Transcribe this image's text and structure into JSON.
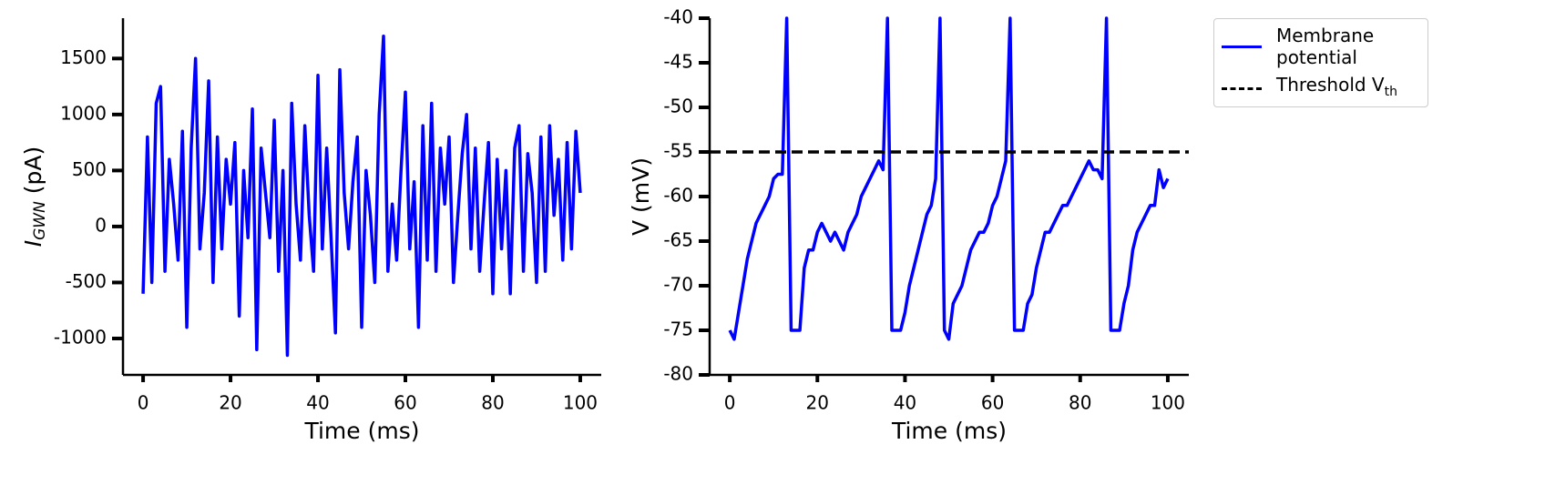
{
  "chart_data": [
    {
      "type": "line",
      "xlabel": "Time (ms)",
      "ylabel": [
        "I",
        "GWN",
        "(pA)"
      ],
      "xlim": [
        -4.6,
        104.8
      ],
      "xticks": [
        0,
        20,
        40,
        60,
        80,
        100
      ],
      "ylim": [
        -1325,
        1860
      ],
      "yticks": [
        -1000,
        -500,
        0,
        500,
        1000,
        1500
      ],
      "x": [
        0,
        1,
        2,
        3,
        4,
        5,
        6,
        7,
        8,
        9,
        10,
        11,
        12,
        13,
        14,
        15,
        16,
        17,
        18,
        19,
        20,
        21,
        22,
        23,
        24,
        25,
        26,
        27,
        28,
        29,
        30,
        31,
        32,
        33,
        34,
        35,
        36,
        37,
        38,
        39,
        40,
        41,
        42,
        43,
        44,
        45,
        46,
        47,
        48,
        49,
        50,
        51,
        52,
        53,
        54,
        55,
        56,
        57,
        58,
        59,
        60,
        61,
        62,
        63,
        64,
        65,
        66,
        67,
        68,
        69,
        70,
        71,
        72,
        73,
        74,
        75,
        76,
        77,
        78,
        79,
        80,
        81,
        82,
        83,
        84,
        85,
        86,
        87,
        88,
        89,
        90,
        91,
        92,
        93,
        94,
        95,
        96,
        97,
        98,
        99,
        100
      ],
      "series": [
        {
          "color": "#0000ff",
          "values": [
            -600,
            800,
            -500,
            1100,
            1250,
            -400,
            600,
            200,
            -300,
            850,
            -900,
            700,
            1500,
            -200,
            300,
            1300,
            -500,
            800,
            -200,
            600,
            200,
            750,
            -800,
            500,
            -100,
            1050,
            -1100,
            700,
            300,
            -100,
            950,
            -400,
            500,
            -1150,
            1100,
            200,
            -300,
            900,
            100,
            -400,
            1350,
            -200,
            700,
            -100,
            -950,
            1400,
            300,
            -200,
            400,
            800,
            -900,
            500,
            100,
            -500,
            1000,
            1700,
            -400,
            200,
            -300,
            500,
            1200,
            -200,
            400,
            -900,
            900,
            -300,
            1100,
            -400,
            700,
            200,
            800,
            -500,
            100,
            650,
            1000,
            -200,
            700,
            -400,
            200,
            750,
            -600,
            600,
            -200,
            500,
            -600,
            700,
            900,
            -400,
            650,
            300,
            -500,
            800,
            -400,
            900,
            100,
            600,
            -300,
            750,
            -200,
            850,
            300
          ]
        }
      ]
    },
    {
      "type": "line",
      "xlabel": "Time (ms)",
      "ylabel": "V (mV)",
      "legend": "outside upper right",
      "xlim": [
        -4.6,
        104.8
      ],
      "xticks": [
        0,
        20,
        40,
        60,
        80,
        100
      ],
      "ylim": [
        -80,
        -40
      ],
      "yticks": [
        -80,
        -75,
        -70,
        -65,
        -60,
        -55,
        -50,
        -45,
        -40
      ],
      "x": [
        0,
        1,
        2,
        3,
        4,
        5,
        6,
        7,
        8,
        9,
        10,
        11,
        12,
        13,
        14,
        15,
        16,
        17,
        18,
        19,
        20,
        21,
        22,
        23,
        24,
        25,
        26,
        27,
        28,
        29,
        30,
        31,
        32,
        33,
        34,
        35,
        36,
        37,
        38,
        39,
        40,
        41,
        42,
        43,
        44,
        45,
        46,
        47,
        48,
        49,
        50,
        51,
        52,
        53,
        54,
        55,
        56,
        57,
        58,
        59,
        60,
        61,
        62,
        63,
        64,
        65,
        66,
        67,
        68,
        69,
        70,
        71,
        72,
        73,
        74,
        75,
        76,
        77,
        78,
        79,
        80,
        81,
        82,
        83,
        84,
        85,
        86,
        87,
        88,
        89,
        90,
        91,
        92,
        93,
        94,
        95,
        96,
        97,
        98,
        99,
        100
      ],
      "series": [
        {
          "name": "Membrane potential",
          "color": "#0000ff",
          "values": [
            -75,
            -76,
            -73,
            -70,
            -67,
            -65,
            -63,
            -62,
            -61,
            -60,
            -58,
            -57.5,
            -57.5,
            -40,
            -75,
            -75,
            -75,
            -68,
            -66,
            -66,
            -64,
            -63,
            -64,
            -65,
            -64,
            -65,
            -66,
            -64,
            -63,
            -62,
            -60,
            -59,
            -58,
            -57,
            -56,
            -57,
            -40,
            -75,
            -75,
            -75,
            -73,
            -70,
            -68,
            -66,
            -64,
            -62,
            -61,
            -58,
            -40,
            -75,
            -76,
            -72,
            -71,
            -70,
            -68,
            -66,
            -65,
            -64,
            -64,
            -63,
            -61,
            -60,
            -58,
            -56,
            -40,
            -75,
            -75,
            -75,
            -72,
            -71,
            -68,
            -66,
            -64,
            -64,
            -63,
            -62,
            -61,
            -61,
            -60,
            -59,
            -58,
            -57,
            -56,
            -57,
            -57,
            -58,
            -40,
            -75,
            -75,
            -75,
            -72,
            -70,
            -66,
            -64,
            -63,
            -62,
            -61,
            -61,
            -57,
            -59,
            -58
          ]
        },
        {
          "name": "Threshold V",
          "name_sub": "th",
          "color": "#000000",
          "dash": true,
          "value": -55
        }
      ]
    }
  ]
}
